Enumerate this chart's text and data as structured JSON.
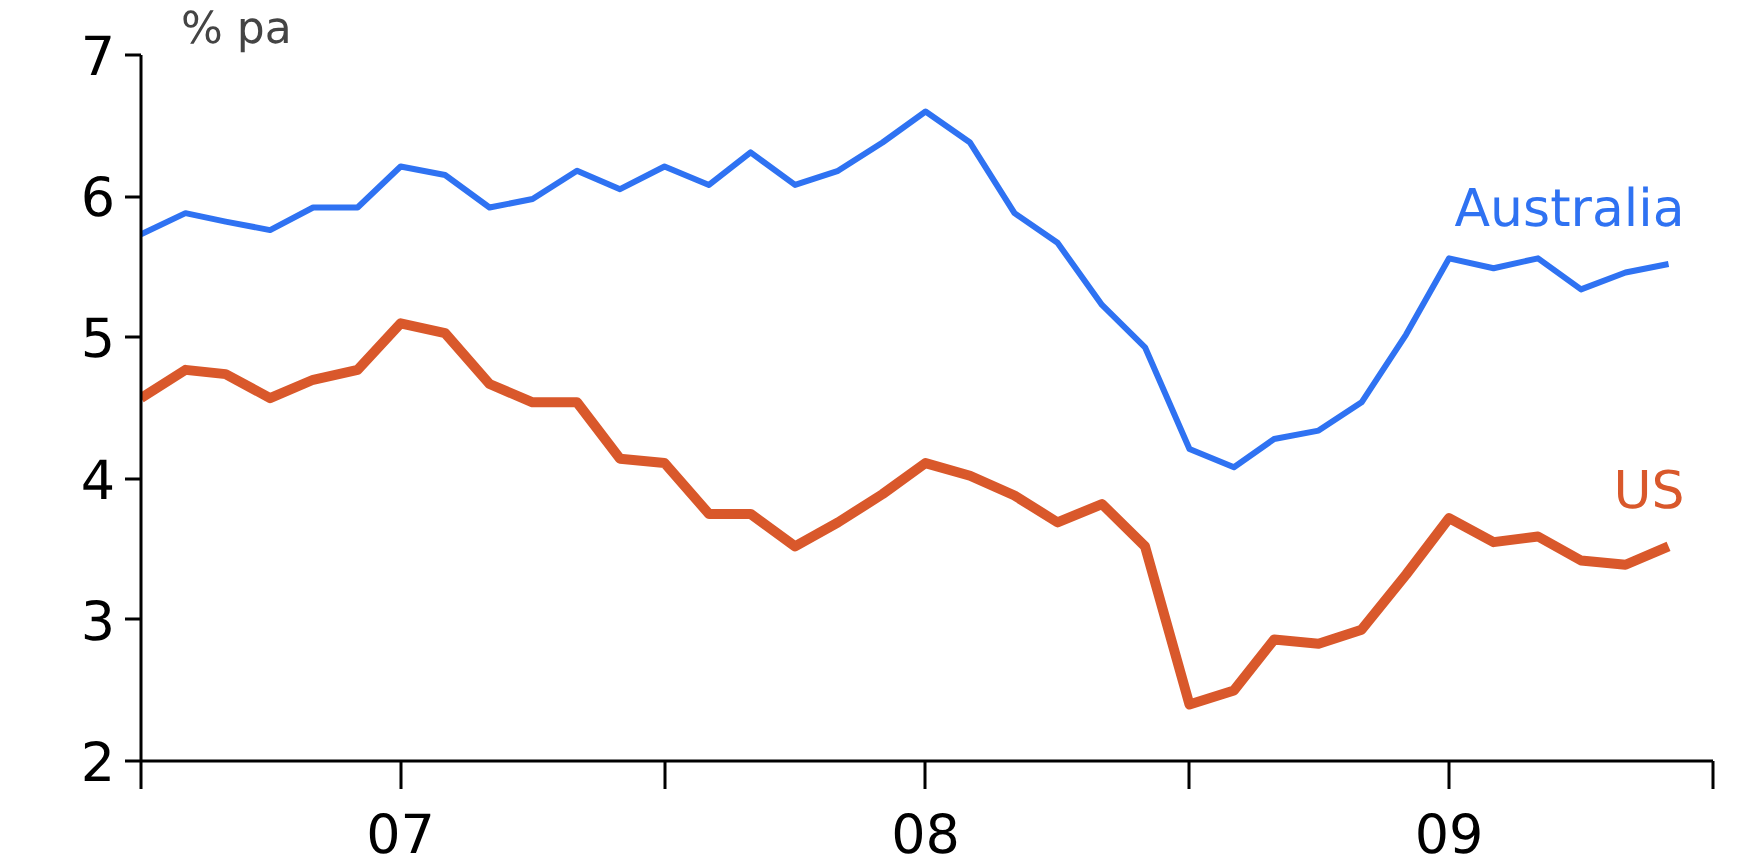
{
  "chart_data": {
    "type": "line",
    "ylabel": "% pa",
    "x": [
      "2007-01",
      "2007-02",
      "2007-03",
      "2007-04",
      "2007-05",
      "2007-06",
      "2007-07",
      "2007-08",
      "2007-09",
      "2007-10",
      "2007-11",
      "2007-12",
      "2008-01",
      "2008-02",
      "2008-03",
      "2008-04",
      "2008-05",
      "2008-06",
      "2008-07",
      "2008-08",
      "2008-09",
      "2008-10",
      "2008-11",
      "2008-12",
      "2009-01",
      "2009-02",
      "2009-03",
      "2009-04",
      "2009-05",
      "2009-06",
      "2009-07",
      "2009-08",
      "2009-09",
      "2009-10",
      "2009-11",
      "2009-12"
    ],
    "series": [
      {
        "name": "Australia",
        "color": "#2f72f2",
        "values": [
          5.73,
          5.88,
          5.82,
          5.76,
          5.92,
          5.92,
          6.21,
          6.15,
          5.92,
          5.98,
          6.18,
          6.05,
          6.21,
          6.08,
          6.31,
          6.08,
          6.18,
          6.38,
          6.6,
          6.38,
          5.88,
          5.67,
          5.23,
          4.93,
          4.21,
          4.08,
          4.28,
          4.34,
          4.54,
          5.02,
          5.56,
          5.49,
          5.56,
          5.34,
          5.46,
          5.52
        ]
      },
      {
        "name": "US",
        "color": "#d9582b",
        "values": [
          4.57,
          4.77,
          4.74,
          4.57,
          4.7,
          4.77,
          5.1,
          5.03,
          4.67,
          4.54,
          4.54,
          4.14,
          4.11,
          3.75,
          3.75,
          3.52,
          3.69,
          3.89,
          4.11,
          4.02,
          3.88,
          3.69,
          3.82,
          3.52,
          2.4,
          2.5,
          2.86,
          2.83,
          2.93,
          3.32,
          3.72,
          3.55,
          3.59,
          3.42,
          3.39,
          3.52
        ]
      }
    ],
    "xlim": [
      "2007-01-01",
      "2010-01-01"
    ],
    "xticks": [
      {
        "value": "2007-01-01",
        "label": null
      },
      {
        "value": "2007-07-01",
        "label": "07"
      },
      {
        "value": "2008-01-01",
        "label": null
      },
      {
        "value": "2008-07-01",
        "label": "08"
      },
      {
        "value": "2009-01-01",
        "label": null
      },
      {
        "value": "2009-07-01",
        "label": "09"
      },
      {
        "value": "2010-01-01",
        "label": null
      }
    ],
    "ylim": [
      2,
      7
    ],
    "yticks": [
      2,
      3,
      4,
      5,
      6,
      7
    ],
    "grid": false,
    "marker": "none",
    "line_style": "solid"
  }
}
